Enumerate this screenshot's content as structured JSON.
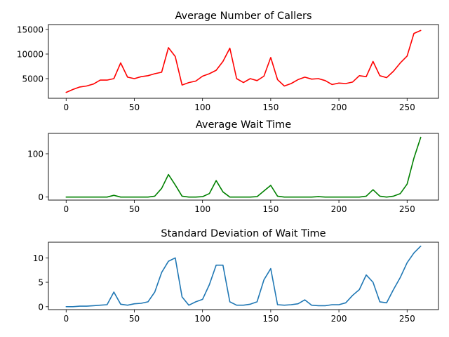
{
  "chart_data": [
    {
      "type": "line",
      "title": "Average Number of Callers",
      "xlabel": "",
      "ylabel": "",
      "xlim": [
        -13,
        273
      ],
      "ylim": [
        1000,
        16000
      ],
      "xticks": [
        0,
        50,
        100,
        150,
        200,
        250
      ],
      "yticks": [
        5000,
        10000,
        15000
      ],
      "ytick_labels": [
        "5000",
        "10000",
        "15000"
      ],
      "grid": false,
      "color": "#ff0000",
      "series": [
        {
          "x_start": 0,
          "x_step": 5,
          "values": [
            2200,
            2800,
            3300,
            3500,
            3900,
            4700,
            4700,
            5000,
            8200,
            5300,
            5000,
            5400,
            5600,
            6000,
            6300,
            11300,
            9500,
            3700,
            4200,
            4500,
            5500,
            6000,
            6700,
            8500,
            11200,
            5000,
            4200,
            5000,
            4600,
            5500,
            9300,
            4800,
            3500,
            4000,
            4800,
            5300,
            4900,
            5000,
            4600,
            3800,
            4100,
            4000,
            4300,
            5600,
            5400,
            8500,
            5600,
            5200,
            6500,
            8200,
            9600,
            14200,
            14800
          ]
        }
      ]
    },
    {
      "type": "line",
      "title": "Average Wait Time",
      "xlabel": "",
      "ylabel": "",
      "xlim": [
        -13,
        273
      ],
      "ylim": [
        -7,
        147
      ],
      "xticks": [
        0,
        50,
        100,
        150,
        200,
        250
      ],
      "yticks": [
        0,
        100
      ],
      "ytick_labels": [
        "0",
        "100"
      ],
      "grid": false,
      "color": "#008000",
      "series": [
        {
          "x_start": 0,
          "x_step": 5,
          "values": [
            0,
            0,
            0,
            0,
            0,
            0,
            0,
            4,
            0,
            0,
            0,
            0,
            0,
            2,
            20,
            52,
            28,
            2,
            0,
            0,
            1,
            8,
            38,
            12,
            0,
            0,
            0,
            0,
            1,
            14,
            27,
            2,
            0,
            0,
            0,
            0,
            0,
            1,
            0,
            0,
            0,
            0,
            0,
            0,
            2,
            17,
            2,
            0,
            2,
            8,
            30,
            90,
            138
          ]
        }
      ]
    },
    {
      "type": "line",
      "title": "Standard Deviation of Wait Time",
      "xlabel": "",
      "ylabel": "",
      "xlim": [
        -13,
        273
      ],
      "ylim": [
        -0.6,
        13.2
      ],
      "xticks": [
        0,
        50,
        100,
        150,
        200,
        250
      ],
      "yticks": [
        0,
        5,
        10
      ],
      "ytick_labels": [
        "0",
        "5",
        "10"
      ],
      "grid": false,
      "color": "#1f77b4",
      "series": [
        {
          "x_start": 0,
          "x_step": 5,
          "values": [
            0,
            0,
            0.1,
            0.1,
            0.2,
            0.3,
            0.4,
            3.0,
            0.5,
            0.3,
            0.6,
            0.7,
            1.0,
            3.0,
            7.0,
            9.3,
            10.0,
            2.0,
            0.3,
            1.0,
            1.5,
            4.5,
            8.5,
            8.5,
            1.0,
            0.3,
            0.3,
            0.5,
            1.0,
            5.5,
            7.8,
            0.4,
            0.3,
            0.4,
            0.6,
            1.4,
            0.3,
            0.2,
            0.2,
            0.4,
            0.4,
            0.8,
            2.3,
            3.5,
            6.5,
            5.0,
            1.0,
            0.8,
            3.5,
            6.0,
            9.0,
            11.0,
            12.4
          ]
        }
      ]
    }
  ]
}
